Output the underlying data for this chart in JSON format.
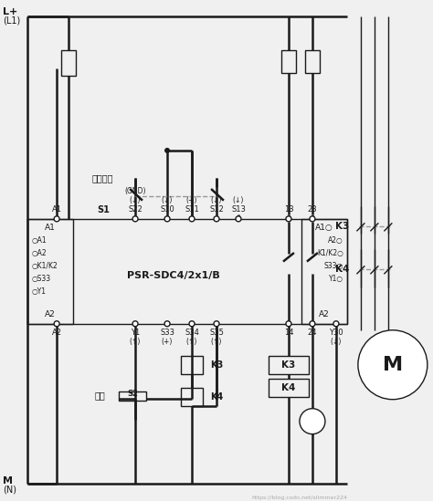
{
  "bg_color": "#f0f0f0",
  "line_color": "#1a1a1a",
  "text_color": "#1a1a1a",
  "dashed_color": "#999999",
  "label_emergency": "急停按钮",
  "label_reset": "复位",
  "label_relay": "PSR-SDC4/2x1/B",
  "label_K3": "K3",
  "label_K4": "K4",
  "label_M": "M",
  "label_S1": "S1",
  "label_S2": "S2",
  "label_L1": "L+",
  "label_L1b": "(L1)",
  "label_MN": "M",
  "label_MNb": "(N)",
  "watermark": "https://blog.csdn.net/slimmer224"
}
